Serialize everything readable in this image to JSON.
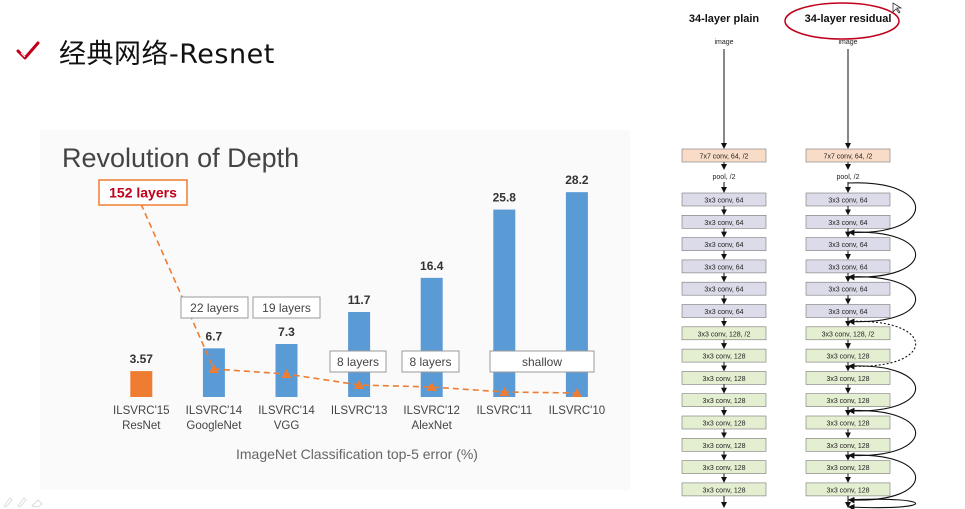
{
  "slide": {
    "title": "经典网络-Resnet"
  },
  "chart_data": {
    "type": "bar",
    "title": "Revolution of Depth",
    "xlabel": "ImageNet Classification top-5 error (%)",
    "ylabel": "",
    "categories": [
      "ILSVRC'15\nResNet",
      "ILSVRC'14\nGoogleNet",
      "ILSVRC'14\nVGG",
      "ILSVRC'13",
      "ILSVRC'12\nAlexNet",
      "ILSVRC'11",
      "ILSVRC'10"
    ],
    "values": [
      3.57,
      6.7,
      7.3,
      11.7,
      16.4,
      25.8,
      28.2
    ],
    "value_labels": [
      "3.57",
      "6.7",
      "7.3",
      "11.7",
      "16.4",
      "25.8",
      "28.2"
    ],
    "bar_colors": [
      "#ee7d31",
      "#5b9bd5",
      "#5b9bd5",
      "#5b9bd5",
      "#5b9bd5",
      "#5b9bd5",
      "#5b9bd5"
    ],
    "ylim": [
      0,
      30
    ],
    "depth_labels": [
      "152 layers",
      "22 layers",
      "19 layers",
      "8 layers",
      "8 layers",
      "shallow"
    ],
    "depth_trend_color": "#ee7d31"
  },
  "architecture": {
    "plain": {
      "title": "34-layer plain",
      "input": "image",
      "layers": [
        "7x7 conv, 64, /2",
        "pool, /2",
        "3x3 conv, 64",
        "3x3 conv, 64",
        "3x3 conv, 64",
        "3x3 conv, 64",
        "3x3 conv, 64",
        "3x3 conv, 64",
        "3x3 conv, 128, /2",
        "3x3 conv, 128",
        "3x3 conv, 128",
        "3x3 conv, 128",
        "3x3 conv, 128",
        "3x3 conv, 128",
        "3x3 conv, 128",
        "3x3 conv, 128"
      ]
    },
    "residual": {
      "title": "34-layer residual",
      "input": "image",
      "layers": [
        "7x7 conv, 64, /2",
        "pool, /2",
        "3x3 conv, 64",
        "3x3 conv, 64",
        "3x3 conv, 64",
        "3x3 conv, 64",
        "3x3 conv, 64",
        "3x3 conv, 64",
        "3x3 conv, 128, /2",
        "3x3 conv, 128",
        "3x3 conv, 128",
        "3x3 conv, 128",
        "3x3 conv, 128",
        "3x3 conv, 128",
        "3x3 conv, 128",
        "3x3 conv, 128"
      ]
    },
    "colors": {
      "first_conv": "#f9dcc8",
      "conv64": "#dcdbe9",
      "conv128": "#e4eed0",
      "highlight": "#c0001a"
    }
  }
}
